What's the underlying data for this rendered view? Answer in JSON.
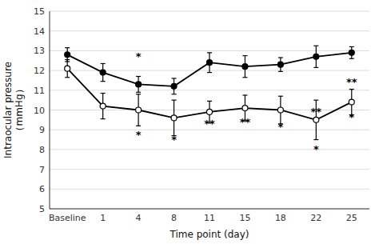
{
  "chart_data": {
    "type": "line",
    "xlabel": "Time point (day)",
    "ylabel": "Intraocular pressure\n（mmHg）",
    "categories": [
      "Baseline",
      "1",
      "4",
      "8",
      "11",
      "15",
      "18",
      "22",
      "25"
    ],
    "series": [
      {
        "color": "#000000",
        "marker": "filled-circle",
        "line_style": "solid",
        "values": [
          12.8,
          11.9,
          11.3,
          11.2,
          12.4,
          12.2,
          12.3,
          12.7,
          12.9
        ],
        "errors": [
          0.35,
          0.45,
          0.4,
          0.4,
          0.5,
          0.55,
          0.35,
          0.55,
          0.3
        ]
      },
      {
        "color": "#000000",
        "marker": "open-circle",
        "line_style": "solid",
        "values": [
          12.1,
          10.2,
          10.0,
          9.6,
          9.9,
          10.1,
          10.0,
          9.5,
          10.4
        ],
        "errors": [
          0.45,
          0.65,
          0.8,
          0.9,
          0.55,
          0.65,
          0.7,
          1.0,
          0.65
        ]
      }
    ],
    "annotations": [
      {
        "category": "4",
        "y": 12.55,
        "text": "*"
      },
      {
        "category": "4",
        "y": 8.55,
        "text": "*"
      },
      {
        "category": "8",
        "y": 8.3,
        "text": "*"
      },
      {
        "category": "11",
        "y": 9.12,
        "text": "**"
      },
      {
        "category": "15",
        "y": 9.2,
        "text": "**"
      },
      {
        "category": "18",
        "y": 8.95,
        "text": "*"
      },
      {
        "category": "22",
        "y": 7.85,
        "text": "*"
      },
      {
        "category": "22",
        "y": 9.75,
        "text": "**"
      },
      {
        "category": "25",
        "y": 9.45,
        "text": "*"
      },
      {
        "category": "25",
        "y": 11.25,
        "text": "**"
      }
    ],
    "ylim": [
      5,
      15
    ],
    "yticks": [
      5,
      6,
      7,
      8,
      9,
      10,
      11,
      12,
      13,
      14,
      15
    ],
    "grid": true
  }
}
